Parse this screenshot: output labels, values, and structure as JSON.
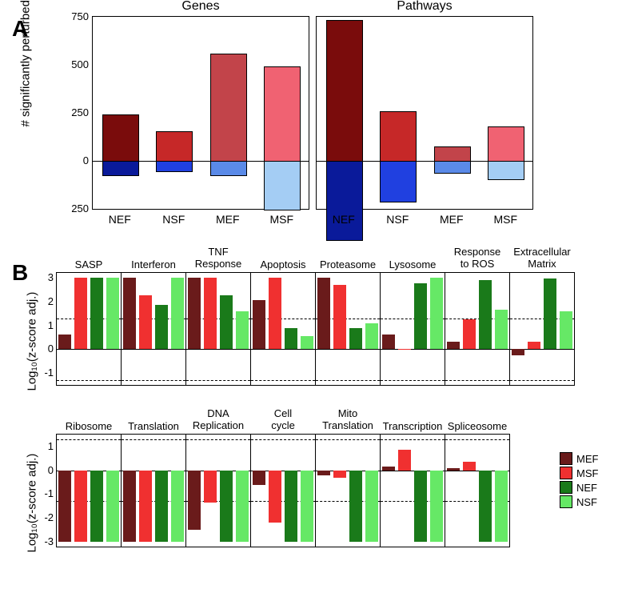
{
  "panelA": {
    "label": "A",
    "ylabel": "# significantly perturbed",
    "ylim_up": 750,
    "ylim_down": 250,
    "yticks_up": [
      0,
      250,
      500,
      750
    ],
    "yticks_down": [
      250
    ],
    "subplots": [
      {
        "title": "Genes",
        "categories": [
          "NEF",
          "NSF",
          "MEF",
          "MSF"
        ],
        "up_values": [
          240,
          155,
          560,
          490
        ],
        "down_values": [
          70,
          50,
          70,
          250
        ],
        "up_colors": [
          "#7a0c0c",
          "#c62828",
          "#c2444a",
          "#f06272"
        ],
        "down_colors": [
          "#0a1a9a",
          "#2040e0",
          "#5a8ae8",
          "#a4cdf4"
        ]
      },
      {
        "title": "Pathways",
        "categories": [
          "NEF",
          "NSF",
          "MEF",
          "MSF"
        ],
        "up_values": [
          735,
          260,
          75,
          180
        ],
        "down_values": [
          410,
          210,
          60,
          90
        ],
        "up_colors": [
          "#7a0c0c",
          "#c62828",
          "#c2444a",
          "#f06272"
        ],
        "down_colors": [
          "#0a1a9a",
          "#2040e0",
          "#5a8ae8",
          "#a4cdf4"
        ]
      }
    ]
  },
  "panelB": {
    "label": "B",
    "ylabel": "Log₁₀(z-score adj.)",
    "ylim": [
      -1.5,
      3.2
    ],
    "yticks": [
      -1,
      0,
      1,
      2,
      3
    ],
    "dashed_lines": [
      1.3,
      -1.3
    ],
    "ylim2": [
      -3.2,
      1.5
    ],
    "yticks2": [
      -3,
      -2,
      -1,
      0,
      1
    ],
    "dashed_lines2": [
      1.3,
      -1.3
    ],
    "bar_colors": [
      "#6a1b1b",
      "#f03030",
      "#1a7a1a",
      "#66e866"
    ],
    "categories": [
      "MEF",
      "MSF",
      "NEF",
      "NSF"
    ],
    "row1": [
      {
        "title": "SASP",
        "values": [
          0.6,
          3.0,
          3.0,
          3.0
        ]
      },
      {
        "title": "Interferon",
        "values": [
          3.0,
          2.25,
          1.85,
          3.0
        ]
      },
      {
        "title": "TNF\nResponse",
        "values": [
          3.0,
          3.0,
          2.25,
          1.6
        ]
      },
      {
        "title": "Apoptosis",
        "values": [
          2.05,
          3.0,
          0.9,
          0.55
        ]
      },
      {
        "title": "Proteasome",
        "values": [
          3.0,
          2.7,
          0.9,
          1.1
        ]
      },
      {
        "title": "Lysosome",
        "values": [
          0.6,
          0.0,
          2.75,
          3.0
        ]
      },
      {
        "title": "Response\nto ROS",
        "values": [
          0.3,
          1.25,
          2.9,
          1.65
        ]
      },
      {
        "title": "Extracellular\nMatrix",
        "values": [
          -0.25,
          0.3,
          2.95,
          1.6
        ]
      }
    ],
    "row2": [
      {
        "title": "Ribosome",
        "values": [
          -3.0,
          -3.0,
          -3.0,
          -3.0
        ]
      },
      {
        "title": "Translation",
        "values": [
          -3.0,
          -3.0,
          -3.0,
          -3.0
        ]
      },
      {
        "title": "DNA\nReplication",
        "values": [
          -2.5,
          -1.35,
          -3.0,
          -3.0
        ]
      },
      {
        "title": "Cell\ncycle",
        "values": [
          -0.6,
          -2.2,
          -3.0,
          -3.0
        ]
      },
      {
        "title": "Mito\nTranslation",
        "values": [
          -0.2,
          -0.3,
          -3.0,
          -3.0
        ]
      },
      {
        "title": "Transcription",
        "values": [
          0.15,
          0.85,
          -3.0,
          -3.0
        ]
      },
      {
        "title": "Spliceosome",
        "values": [
          0.1,
          0.35,
          -3.0,
          -3.0
        ]
      }
    ],
    "legend": [
      {
        "label": "MEF",
        "color": "#6a1b1b"
      },
      {
        "label": "MSF",
        "color": "#f03030"
      },
      {
        "label": "NEF",
        "color": "#1a7a1a"
      },
      {
        "label": "NSF",
        "color": "#66e866"
      }
    ]
  }
}
